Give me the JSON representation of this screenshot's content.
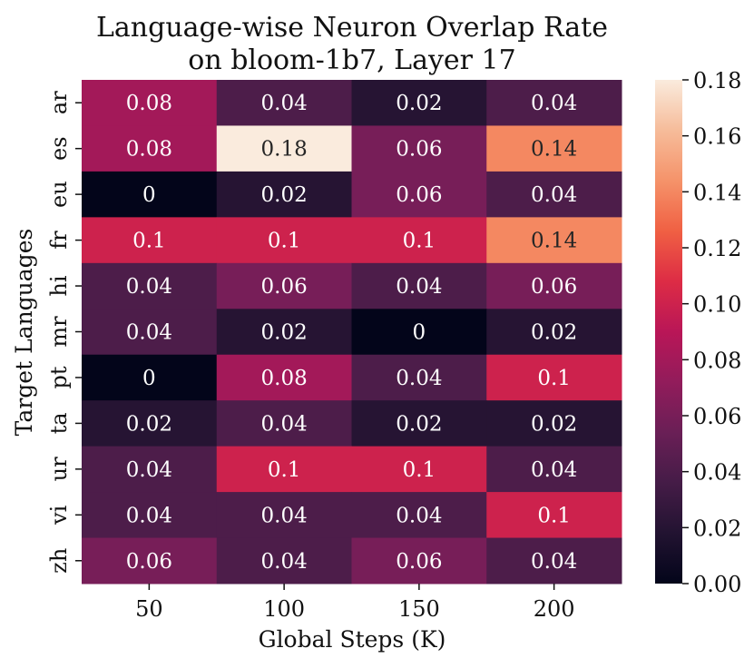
{
  "chart_data": {
    "type": "heatmap",
    "title": "Language-wise Neuron Overlap Rate",
    "subtitle": "on bloom-1b7, Layer 17",
    "xlabel": "Global Steps (K)",
    "ylabel": "Target Languages",
    "x_categories": [
      "50",
      "100",
      "150",
      "200"
    ],
    "y_categories": [
      "ar",
      "es",
      "eu",
      "fr",
      "hi",
      "mr",
      "pt",
      "ta",
      "ur",
      "vi",
      "zh"
    ],
    "values": [
      [
        0.08,
        0.04,
        0.02,
        0.04
      ],
      [
        0.08,
        0.18,
        0.06,
        0.14
      ],
      [
        0,
        0.02,
        0.06,
        0.04
      ],
      [
        0.1,
        0.1,
        0.1,
        0.14
      ],
      [
        0.04,
        0.06,
        0.04,
        0.06
      ],
      [
        0.04,
        0.02,
        0,
        0.02
      ],
      [
        0,
        0.08,
        0.04,
        0.1
      ],
      [
        0.02,
        0.04,
        0.02,
        0.02
      ],
      [
        0.04,
        0.1,
        0.1,
        0.04
      ],
      [
        0.04,
        0.04,
        0.04,
        0.1
      ],
      [
        0.06,
        0.04,
        0.06,
        0.04
      ]
    ],
    "cell_labels": [
      [
        "0.08",
        "0.04",
        "0.02",
        "0.04"
      ],
      [
        "0.08",
        "0.18",
        "0.06",
        "0.14"
      ],
      [
        "0",
        "0.02",
        "0.06",
        "0.04"
      ],
      [
        "0.1",
        "0.1",
        "0.1",
        "0.14"
      ],
      [
        "0.04",
        "0.06",
        "0.04",
        "0.06"
      ],
      [
        "0.04",
        "0.02",
        "0",
        "0.02"
      ],
      [
        "0",
        "0.08",
        "0.04",
        "0.1"
      ],
      [
        "0.02",
        "0.04",
        "0.02",
        "0.02"
      ],
      [
        "0.04",
        "0.1",
        "0.1",
        "0.04"
      ],
      [
        "0.04",
        "0.04",
        "0.04",
        "0.1"
      ],
      [
        "0.06",
        "0.04",
        "0.06",
        "0.04"
      ]
    ],
    "colorbar": {
      "range": [
        0,
        0.18
      ],
      "ticks": [
        0.0,
        0.02,
        0.04,
        0.06,
        0.08,
        0.1,
        0.12,
        0.14,
        0.16,
        0.18
      ],
      "tick_labels": [
        "0.00",
        "0.02",
        "0.04",
        "0.06",
        "0.08",
        "0.10",
        "0.12",
        "0.14",
        "0.16",
        "0.18"
      ],
      "colormap": "rocket",
      "colormap_stops": [
        "#03051a",
        "#221331",
        "#451c47",
        "#6a1f56",
        "#921c5b",
        "#b91657",
        "#dd2c45",
        "#f06043",
        "#f5936a",
        "#f6bc9a",
        "#faebdd"
      ]
    }
  }
}
